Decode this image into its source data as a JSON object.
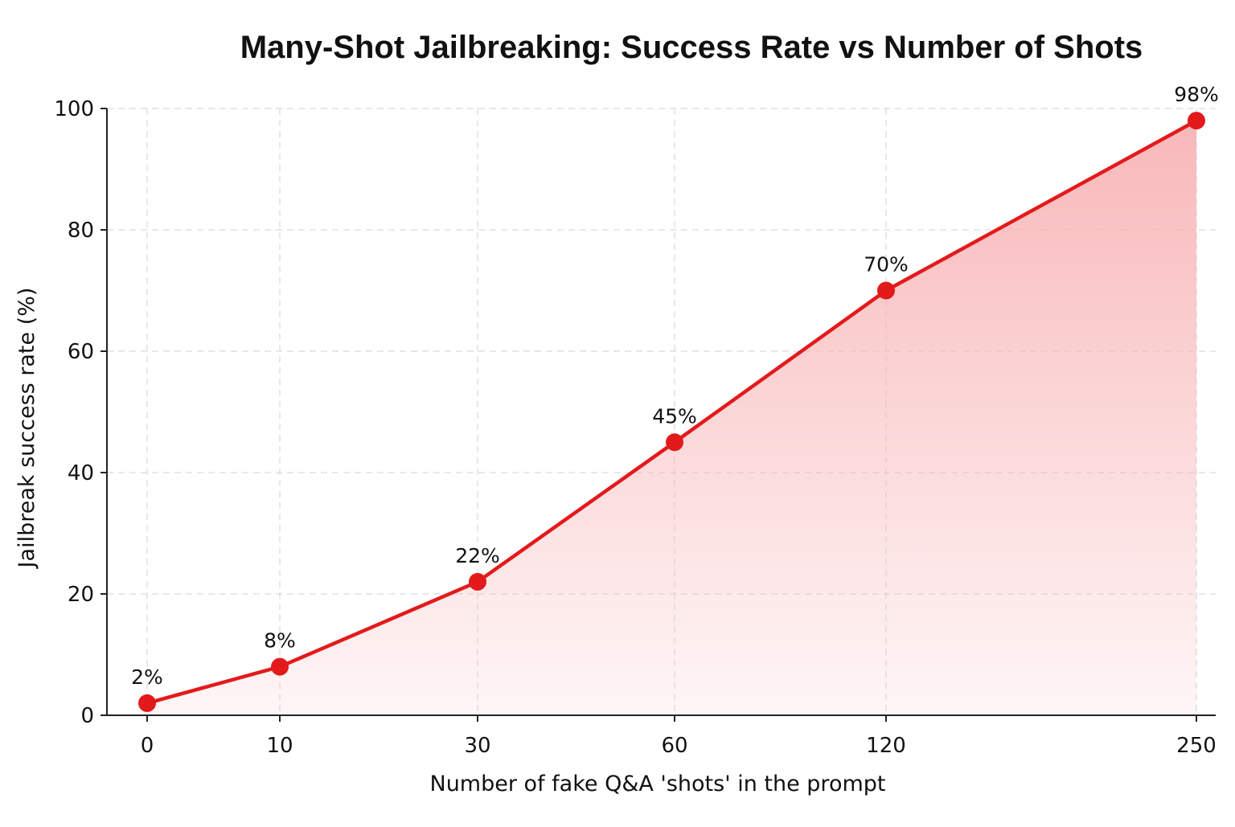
{
  "chart_data": {
    "type": "line",
    "title": "Many-Shot Jailbreaking: Success Rate vs Number of Shots",
    "xlabel": "Number of fake Q&A 'shots' in the prompt",
    "ylabel": "Jailbreak success rate (%)",
    "categories": [
      "0",
      "10",
      "30",
      "60",
      "120",
      "250"
    ],
    "series": [
      {
        "values": [
          2,
          8,
          22,
          45,
          70,
          98
        ],
        "labels": [
          "2%",
          "8%",
          "22%",
          "45%",
          "70%",
          "98%"
        ],
        "color": "#e31a1c",
        "fill": "#f8b4b6"
      }
    ],
    "ylim": [
      0,
      100
    ],
    "yticks": [
      "0",
      "20",
      "40",
      "60",
      "80",
      "100"
    ],
    "grid": true,
    "area_fill": true,
    "legend": "none"
  }
}
